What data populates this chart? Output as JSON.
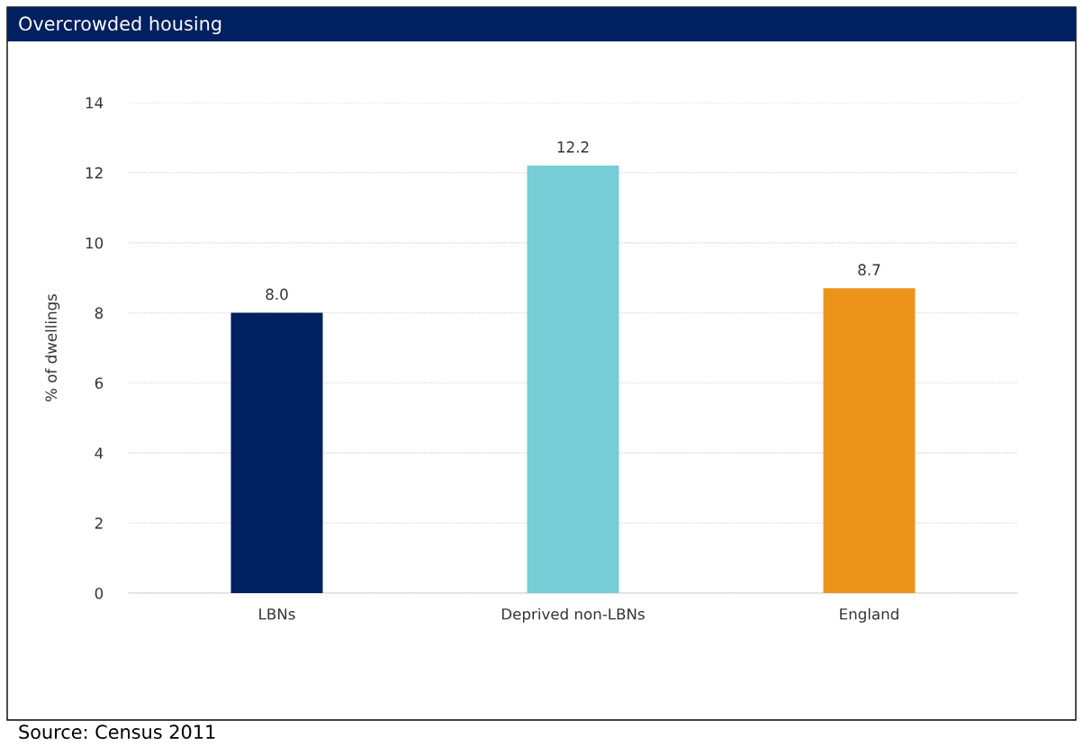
{
  "chart_data": {
    "type": "bar",
    "title": "Overcrowded housing",
    "ylabel": "% of dwellings",
    "categories": [
      "LBNs",
      "Deprived non-LBNs",
      "England"
    ],
    "values": [
      8.0,
      12.2,
      8.7
    ],
    "colors": [
      "#002060",
      "#77cdd5",
      "#ec9419"
    ],
    "value_labels": [
      "8.0",
      "12.2",
      "8.7"
    ],
    "ylim": [
      0,
      14
    ],
    "yticks": [
      0,
      2,
      4,
      6,
      8,
      10,
      12,
      14
    ],
    "grid": "y",
    "annotations": [
      "Source: Census 2011"
    ]
  }
}
